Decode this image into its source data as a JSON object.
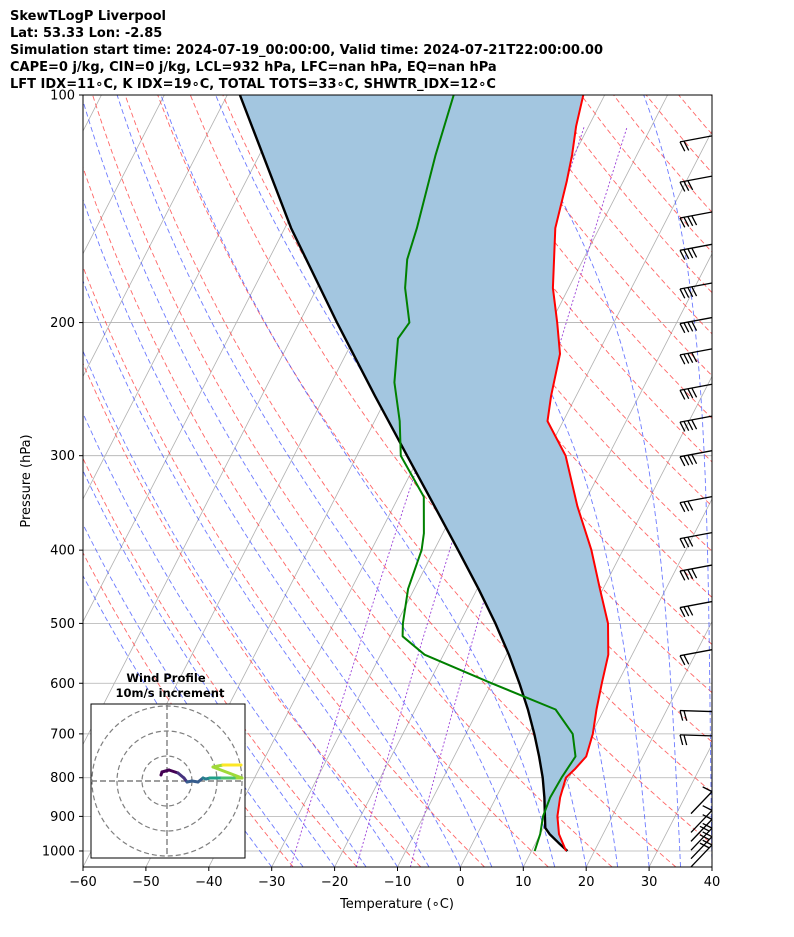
{
  "header": {
    "line1": "SkewTLogP Liverpool",
    "line2": "Lat: 53.33   Lon: -2.85",
    "line3": "Simulation start time: 2024-07-19_00:00:00, Valid time: 2024-07-21T22:00:00.00",
    "line4": "CAPE=0 j/kg, CIN=0 j/kg, LCL=932 hPa, LFC=nan hPa, EQ=nan hPa",
    "line5": "LFT IDX=11∘C, K IDX=19∘C, TOTAL TOTS=33∘C, SHWTR_IDX=12∘C"
  },
  "chart_data": {
    "type": "line",
    "subtype": "skew-t-log-p",
    "xlabel": "Temperature (∘C)",
    "ylabel": "Pressure (hPa)",
    "xlim": [
      -60,
      40
    ],
    "ylim": [
      1050,
      100
    ],
    "x_ticks": [
      -60,
      -50,
      -40,
      -30,
      -20,
      -10,
      0,
      10,
      20,
      30,
      40
    ],
    "x_tick_labels": [
      "−60",
      "−50",
      "−40",
      "−30",
      "−20",
      "−10",
      "0",
      "10",
      "20",
      "30",
      "40"
    ],
    "y_ticks": [
      1000,
      900,
      800,
      700,
      600,
      500,
      400,
      300,
      200,
      100
    ],
    "y_tick_labels": [
      "1000",
      "900",
      "800",
      "700",
      "600",
      "500",
      "400",
      "300",
      "200",
      "100"
    ],
    "grid": true,
    "series": [
      {
        "name": "Temperature",
        "color": "#ff0000",
        "points": [
          [
            1000,
            15.5
          ],
          [
            950,
            13
          ],
          [
            900,
            11.3
          ],
          [
            850,
            10.2
          ],
          [
            800,
            9.5
          ],
          [
            780,
            10.2
          ],
          [
            750,
            11
          ],
          [
            700,
            10.2
          ],
          [
            650,
            8.8
          ],
          [
            600,
            7.5
          ],
          [
            550,
            6.2
          ],
          [
            500,
            3.6
          ],
          [
            450,
            -0.5
          ],
          [
            400,
            -5
          ],
          [
            350,
            -10.8
          ],
          [
            300,
            -16.8
          ],
          [
            270,
            -22.5
          ],
          [
            250,
            -24
          ],
          [
            220,
            -26
          ],
          [
            200,
            -29
          ],
          [
            180,
            -32.5
          ],
          [
            150,
            -37
          ],
          [
            130,
            -39
          ],
          [
            120,
            -40.3
          ],
          [
            110,
            -42
          ],
          [
            100,
            -43.4
          ]
        ]
      },
      {
        "name": "Dewpoint",
        "color": "#008000",
        "points": [
          [
            1000,
            10.5
          ],
          [
            950,
            10
          ],
          [
            900,
            9
          ],
          [
            850,
            8.6
          ],
          [
            800,
            8.8
          ],
          [
            750,
            9.3
          ],
          [
            700,
            7
          ],
          [
            650,
            2.3
          ],
          [
            600,
            -10
          ],
          [
            550,
            -23
          ],
          [
            520,
            -28
          ],
          [
            500,
            -29
          ],
          [
            450,
            -31
          ],
          [
            400,
            -32
          ],
          [
            380,
            -33
          ],
          [
            340,
            -36
          ],
          [
            300,
            -43
          ],
          [
            270,
            -46
          ],
          [
            240,
            -50
          ],
          [
            210,
            -53
          ],
          [
            200,
            -52.5
          ],
          [
            180,
            -56
          ],
          [
            165,
            -58
          ],
          [
            150,
            -59
          ],
          [
            120,
            -62
          ],
          [
            100,
            -64
          ]
        ]
      },
      {
        "name": "Parcel profile",
        "color": "#000000",
        "points": [
          [
            1000,
            15.7
          ],
          [
            975,
            13.6
          ],
          [
            950,
            11.5
          ],
          [
            932,
            10.3
          ],
          [
            900,
            9.3
          ],
          [
            850,
            7.7
          ],
          [
            800,
            5.8
          ],
          [
            750,
            3.5
          ],
          [
            700,
            0.9
          ],
          [
            650,
            -2.1
          ],
          [
            600,
            -5.6
          ],
          [
            550,
            -9.6
          ],
          [
            500,
            -14.3
          ],
          [
            450,
            -19.8
          ],
          [
            400,
            -26.2
          ],
          [
            350,
            -33.5
          ],
          [
            300,
            -42
          ],
          [
            250,
            -52
          ],
          [
            200,
            -64
          ],
          [
            150,
            -79
          ],
          [
            100,
            -98
          ]
        ]
      }
    ],
    "wind_barbs": [
      {
        "p": 1000,
        "count": 2
      },
      {
        "p": 975,
        "count": 2
      },
      {
        "p": 950,
        "count": 2
      },
      {
        "p": 925,
        "count": 1
      },
      {
        "p": 900,
        "count": 1
      },
      {
        "p": 850,
        "count": 1
      },
      {
        "p": 700,
        "count": 2
      },
      {
        "p": 650,
        "count": 2
      },
      {
        "p": 550,
        "count": 2
      },
      {
        "p": 475,
        "count": 3
      },
      {
        "p": 425,
        "count": 4
      },
      {
        "p": 385,
        "count": 3
      },
      {
        "p": 345,
        "count": 3
      },
      {
        "p": 300,
        "count": 4
      },
      {
        "p": 270,
        "count": 4
      },
      {
        "p": 245,
        "count": 4
      },
      {
        "p": 220,
        "count": 4
      },
      {
        "p": 200,
        "count": 4
      },
      {
        "p": 180,
        "count": 4
      },
      {
        "p": 160,
        "count": 4
      },
      {
        "p": 145,
        "count": 4
      },
      {
        "p": 130,
        "count": 3
      },
      {
        "p": 115,
        "count": 2
      }
    ],
    "inset": {
      "title": "Wind Profile",
      "subtitle": "10m/s increment",
      "rings": 3,
      "hodograph": [
        [
          -0.6,
          0.6
        ],
        [
          -0.5,
          0.9
        ],
        [
          0.2,
          1.1
        ],
        [
          1.1,
          0.8
        ],
        [
          1.7,
          0.3
        ],
        [
          2.0,
          -0.1
        ],
        [
          2.5,
          0
        ],
        [
          3.1,
          -0.1
        ],
        [
          3.6,
          0.3
        ],
        [
          3.9,
          0.2
        ],
        [
          4.3,
          0.3
        ],
        [
          4.6,
          0.3
        ],
        [
          5.0,
          0.3
        ],
        [
          5.5,
          0.3
        ],
        [
          6.2,
          0.3
        ],
        [
          7.0,
          0.3
        ],
        [
          7.5,
          0.3
        ],
        [
          4.6,
          1.4
        ],
        [
          5.6,
          1.6
        ],
        [
          6.4,
          1.6
        ],
        [
          7.4,
          1.6
        ]
      ]
    }
  }
}
